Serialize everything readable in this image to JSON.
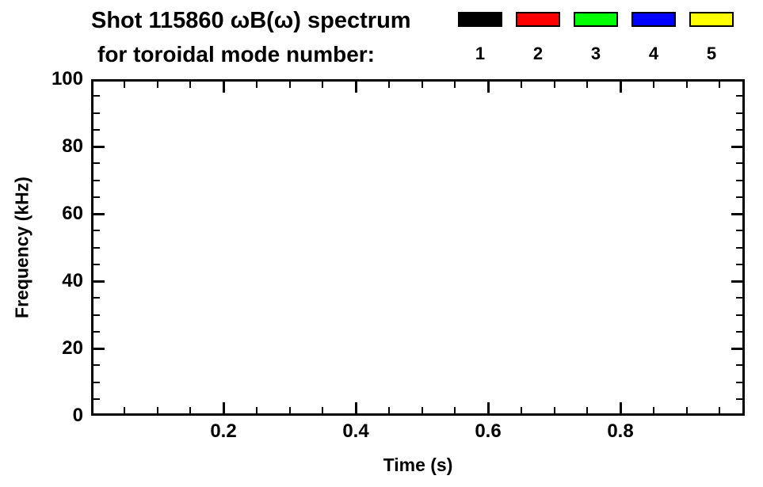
{
  "header": {
    "line1": "Shot 115860 ωB(ω) spectrum",
    "line2": "for toroidal mode number:"
  },
  "legend": {
    "entries": [
      {
        "label": "1",
        "color": "#000000"
      },
      {
        "label": "2",
        "color": "#ff0000"
      },
      {
        "label": "3",
        "color": "#00ff00"
      },
      {
        "label": "4",
        "color": "#0000ff"
      },
      {
        "label": "5",
        "color": "#ffff00"
      }
    ]
  },
  "chart_data": {
    "type": "heatmap",
    "title": "Shot 115860 ωB(ω) spectrum for toroidal mode number: 1 2 3 4 5",
    "xlabel": "Time (s)",
    "ylabel": "Frequency (kHz)",
    "xlim": [
      0.0,
      1.0
    ],
    "ylim": [
      0,
      100
    ],
    "x_major_ticks": [
      {
        "v": 0.2,
        "label": "0.2"
      },
      {
        "v": 0.4,
        "label": "0.4"
      },
      {
        "v": 0.6,
        "label": "0.6"
      },
      {
        "v": 0.8,
        "label": "0.8"
      }
    ],
    "y_major_ticks": [
      {
        "v": 0,
        "label": "0"
      },
      {
        "v": 20,
        "label": "20"
      },
      {
        "v": 40,
        "label": "40"
      },
      {
        "v": 60,
        "label": "60"
      },
      {
        "v": 80,
        "label": "80"
      },
      {
        "v": 100,
        "label": "100"
      }
    ],
    "x_minor_step": 0.05,
    "y_minor_step": 5,
    "grid": false,
    "legend_position": "top-right-above-plot",
    "frame_color": "#000000",
    "series": [
      {
        "name": "toroidal mode n=1",
        "color": "#000000",
        "points": []
      },
      {
        "name": "toroidal mode n=2",
        "color": "#ff0000",
        "points": []
      },
      {
        "name": "toroidal mode n=3",
        "color": "#00ff00",
        "points": []
      },
      {
        "name": "toroidal mode n=4",
        "color": "#0000ff",
        "points": []
      },
      {
        "name": "toroidal mode n=5",
        "color": "#ffff00",
        "points": []
      }
    ],
    "note": "Plot area is empty — no spectral data points are drawn inside the axes."
  }
}
